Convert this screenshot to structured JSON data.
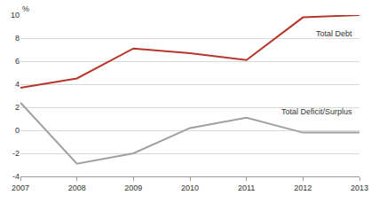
{
  "chart_data": {
    "type": "line",
    "ylabel": "%",
    "x": [
      2007,
      2008,
      2009,
      2010,
      2011,
      2012,
      2013
    ],
    "series": [
      {
        "name": "Total Debt",
        "color": "#b5372a",
        "values": [
          3.7,
          4.5,
          7.1,
          6.7,
          6.1,
          9.8,
          10.0
        ]
      },
      {
        "name": "Total Deficit/Surplus",
        "color": "#a0a0a0",
        "values": [
          2.4,
          -2.9,
          -2.0,
          0.2,
          1.1,
          -0.2,
          -0.2
        ]
      }
    ],
    "xlim": [
      2007,
      2013
    ],
    "xticks": [
      2007,
      2008,
      2009,
      2010,
      2011,
      2012,
      2013
    ],
    "ylim": [
      -4,
      10
    ],
    "yticks": [
      -4,
      -2,
      0,
      2,
      4,
      6,
      8,
      10
    ],
    "grid": true
  }
}
